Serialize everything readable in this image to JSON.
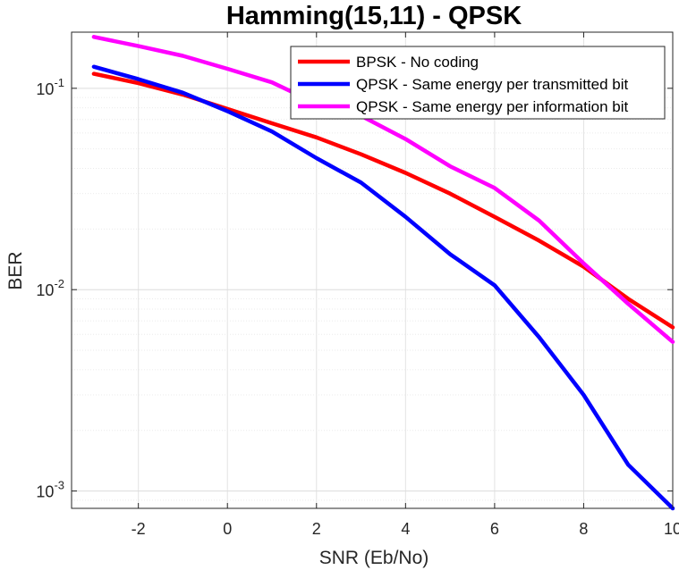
{
  "chart_data": {
    "type": "line",
    "title": "Hamming(15,11) - QPSK",
    "xlabel": "SNR (Eb/No)",
    "ylabel": "BER",
    "xlim": [
      -3.5,
      10
    ],
    "ylim": [
      0.00082,
      0.19
    ],
    "yscale": "log",
    "grid": true,
    "minor_grid": true,
    "legend_position": "top-right",
    "x_ticks": [
      -2,
      0,
      2,
      4,
      6,
      8,
      10
    ],
    "x_tick_labels": [
      "-2",
      "0",
      "2",
      "4",
      "6",
      "8",
      "10"
    ],
    "y_ticks": [
      {
        "value": 0.1,
        "base": "10",
        "exp": "-1"
      },
      {
        "value": 0.01,
        "base": "10",
        "exp": "-2"
      },
      {
        "value": 0.001,
        "base": "10",
        "exp": "-3"
      }
    ],
    "x": [
      -3,
      -2,
      -1,
      0,
      1,
      2,
      3,
      4,
      5,
      6,
      7,
      8,
      9,
      10
    ],
    "series": [
      {
        "name": "BPSK - No coding",
        "color": "#ff0000",
        "values": [
          0.118,
          0.106,
          0.093,
          0.079,
          0.067,
          0.057,
          0.047,
          0.038,
          0.03,
          0.023,
          0.0175,
          0.013,
          0.009,
          0.0065
        ]
      },
      {
        "name": "QPSK - Same energy per transmitted bit",
        "color": "#0000ff",
        "values": [
          0.128,
          0.111,
          0.095,
          0.077,
          0.061,
          0.045,
          0.034,
          0.023,
          0.015,
          0.0105,
          0.0058,
          0.003,
          0.00135,
          0.00082
        ]
      },
      {
        "name": "QPSK - Same energy per information bit",
        "color": "#ff00ff",
        "values": [
          0.18,
          0.162,
          0.145,
          0.125,
          0.107,
          0.084,
          0.073,
          0.056,
          0.041,
          0.032,
          0.022,
          0.0135,
          0.0085,
          0.0055
        ]
      }
    ]
  }
}
